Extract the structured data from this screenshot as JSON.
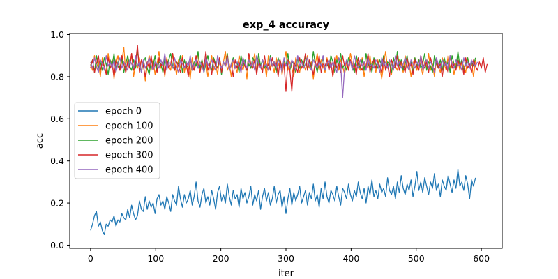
{
  "chart_data": {
    "type": "line",
    "title": "exp_4 accuracy",
    "xlabel": "iter",
    "ylabel": "acc",
    "xlim": [
      -32,
      632
    ],
    "ylim": [
      -0.015,
      1.005
    ],
    "xticks": [
      0,
      100,
      200,
      300,
      400,
      500,
      600
    ],
    "yticks": [
      0.0,
      0.2,
      0.4,
      0.6,
      0.8,
      1.0
    ],
    "xtick_labels": [
      "0",
      "100",
      "200",
      "300",
      "400",
      "500",
      "600"
    ],
    "ytick_labels": [
      "0.0",
      "0.2",
      "0.4",
      "0.6",
      "0.8",
      "1.0"
    ],
    "grid": false,
    "legend_position": "center-left",
    "x": {
      "start": 0,
      "end": 600,
      "step": 3
    },
    "series": [
      {
        "name": "epoch 0",
        "color": "#1f77b4",
        "values": [
          0.07,
          0.1,
          0.14,
          0.16,
          0.09,
          0.11,
          0.07,
          0.05,
          0.1,
          0.09,
          0.12,
          0.11,
          0.14,
          0.09,
          0.12,
          0.11,
          0.15,
          0.13,
          0.12,
          0.17,
          0.13,
          0.19,
          0.15,
          0.12,
          0.14,
          0.21,
          0.17,
          0.16,
          0.23,
          0.17,
          0.21,
          0.18,
          0.2,
          0.15,
          0.22,
          0.24,
          0.19,
          0.21,
          0.17,
          0.23,
          0.2,
          0.16,
          0.24,
          0.21,
          0.19,
          0.28,
          0.22,
          0.18,
          0.24,
          0.2,
          0.22,
          0.26,
          0.19,
          0.23,
          0.3,
          0.21,
          0.18,
          0.24,
          0.27,
          0.2,
          0.23,
          0.19,
          0.26,
          0.22,
          0.17,
          0.25,
          0.28,
          0.21,
          0.24,
          0.2,
          0.29,
          0.23,
          0.19,
          0.26,
          0.22,
          0.24,
          0.18,
          0.27,
          0.22,
          0.25,
          0.2,
          0.23,
          0.28,
          0.19,
          0.24,
          0.21,
          0.26,
          0.17,
          0.23,
          0.27,
          0.21,
          0.25,
          0.19,
          0.22,
          0.28,
          0.2,
          0.24,
          0.26,
          0.18,
          0.23,
          0.15,
          0.22,
          0.27,
          0.19,
          0.25,
          0.21,
          0.24,
          0.28,
          0.2,
          0.23,
          0.26,
          0.19,
          0.25,
          0.22,
          0.29,
          0.21,
          0.24,
          0.18,
          0.27,
          0.22,
          0.3,
          0.23,
          0.2,
          0.26,
          0.24,
          0.21,
          0.28,
          0.23,
          0.19,
          0.27,
          0.25,
          0.22,
          0.29,
          0.24,
          0.21,
          0.26,
          0.23,
          0.3,
          0.25,
          0.22,
          0.27,
          0.2,
          0.28,
          0.24,
          0.31,
          0.23,
          0.26,
          0.22,
          0.29,
          0.25,
          0.27,
          0.23,
          0.32,
          0.26,
          0.24,
          0.28,
          0.22,
          0.3,
          0.25,
          0.33,
          0.27,
          0.24,
          0.29,
          0.26,
          0.31,
          0.23,
          0.28,
          0.35,
          0.26,
          0.3,
          0.25,
          0.32,
          0.28,
          0.24,
          0.3,
          0.27,
          0.34,
          0.26,
          0.29,
          0.23,
          0.31,
          0.28,
          0.26,
          0.33,
          0.29,
          0.25,
          0.31,
          0.27,
          0.36,
          0.28,
          0.3,
          0.26,
          0.33,
          0.29,
          0.22,
          0.31,
          0.28,
          0.32
        ]
      },
      {
        "name": "epoch 100",
        "color": "#ff7f0e",
        "values": [
          0.86,
          0.83,
          0.9,
          0.84,
          0.87,
          0.8,
          0.89,
          0.85,
          0.82,
          0.91,
          0.84,
          0.88,
          0.79,
          0.86,
          0.9,
          0.83,
          0.87,
          0.94,
          0.82,
          0.88,
          0.85,
          0.91,
          0.8,
          0.86,
          0.84,
          0.89,
          0.82,
          0.87,
          0.78,
          0.85,
          0.9,
          0.83,
          0.88,
          0.81,
          0.86,
          0.92,
          0.84,
          0.87,
          0.8,
          0.89,
          0.85,
          0.83,
          0.91,
          0.86,
          0.81,
          0.88,
          0.84,
          0.9,
          0.82,
          0.87,
          0.85,
          0.79,
          0.89,
          0.83,
          0.86,
          0.91,
          0.82,
          0.88,
          0.84,
          0.87,
          0.8,
          0.85,
          0.9,
          0.83,
          0.86,
          0.81,
          0.89,
          0.84,
          0.87,
          0.92,
          0.83,
          0.86,
          0.8,
          0.88,
          0.85,
          0.82,
          0.9,
          0.86,
          0.83,
          0.87,
          0.79,
          0.89,
          0.84,
          0.86,
          0.91,
          0.82,
          0.88,
          0.85,
          0.83,
          0.87,
          0.8,
          0.9,
          0.84,
          0.86,
          0.82,
          0.89,
          0.85,
          0.88,
          0.81,
          0.86,
          0.92,
          0.83,
          0.87,
          0.84,
          0.8,
          0.89,
          0.85,
          0.82,
          0.88,
          0.86,
          0.83,
          0.9,
          0.84,
          0.87,
          0.79,
          0.86,
          0.91,
          0.83,
          0.88,
          0.85,
          0.82,
          0.89,
          0.84,
          0.87,
          0.8,
          0.86,
          0.9,
          0.83,
          0.88,
          0.85,
          0.81,
          0.87,
          0.84,
          0.91,
          0.86,
          0.82,
          0.88,
          0.85,
          0.83,
          0.89,
          0.8,
          0.86,
          0.84,
          0.9,
          0.83,
          0.87,
          0.82,
          0.88,
          0.85,
          0.79,
          0.86,
          0.92,
          0.84,
          0.87,
          0.81,
          0.89,
          0.85,
          0.83,
          0.88,
          0.86,
          0.82,
          0.9,
          0.84,
          0.87,
          0.8,
          0.86,
          0.89,
          0.83,
          0.88,
          0.85,
          0.81,
          0.87,
          0.84,
          0.91,
          0.83,
          0.86,
          0.8,
          0.88,
          0.85,
          0.82,
          0.89,
          0.86,
          0.83,
          0.9,
          0.84,
          0.87,
          0.81,
          0.86,
          0.88,
          0.83,
          0.87,
          0.85,
          0.82,
          0.89,
          0.84,
          0.86,
          0.8,
          0.88
        ]
      },
      {
        "name": "epoch 200",
        "color": "#2ca02c",
        "values": [
          0.85,
          0.88,
          0.82,
          0.9,
          0.84,
          0.87,
          0.83,
          0.89,
          0.86,
          0.81,
          0.88,
          0.85,
          0.91,
          0.83,
          0.87,
          0.84,
          0.89,
          0.82,
          0.86,
          0.9,
          0.85,
          0.83,
          0.88,
          0.84,
          0.92,
          0.86,
          0.82,
          0.87,
          0.89,
          0.84,
          0.81,
          0.88,
          0.85,
          0.9,
          0.83,
          0.87,
          0.86,
          0.82,
          0.89,
          0.84,
          0.88,
          0.91,
          0.85,
          0.83,
          0.87,
          0.86,
          0.9,
          0.82,
          0.88,
          0.84,
          0.86,
          0.89,
          0.83,
          0.87,
          0.85,
          0.92,
          0.84,
          0.88,
          0.82,
          0.86,
          0.9,
          0.85,
          0.83,
          0.89,
          0.86,
          0.84,
          0.88,
          0.81,
          0.87,
          0.85,
          0.91,
          0.83,
          0.86,
          0.89,
          0.84,
          0.87,
          0.82,
          0.9,
          0.85,
          0.88,
          0.83,
          0.86,
          0.84,
          0.89,
          0.87,
          0.82,
          0.91,
          0.85,
          0.88,
          0.84,
          0.86,
          0.83,
          0.9,
          0.85,
          0.87,
          0.82,
          0.89,
          0.86,
          0.84,
          0.88,
          0.85,
          0.91,
          0.83,
          0.87,
          0.86,
          0.82,
          0.89,
          0.84,
          0.88,
          0.85,
          0.9,
          0.83,
          0.87,
          0.84,
          0.92,
          0.86,
          0.82,
          0.88,
          0.85,
          0.89,
          0.83,
          0.86,
          0.84,
          0.9,
          0.87,
          0.82,
          0.88,
          0.85,
          0.91,
          0.84,
          0.86,
          0.83,
          0.89,
          0.87,
          0.85,
          0.82,
          0.9,
          0.86,
          0.84,
          0.88,
          0.83,
          0.91,
          0.85,
          0.87,
          0.82,
          0.89,
          0.86,
          0.84,
          0.88,
          0.85,
          0.9,
          0.83,
          0.87,
          0.86,
          0.82,
          0.89,
          0.84,
          0.92,
          0.85,
          0.88,
          0.83,
          0.86,
          0.9,
          0.84,
          0.87,
          0.82,
          0.89,
          0.85,
          0.88,
          0.84,
          0.86,
          0.91,
          0.83,
          0.87,
          0.85,
          0.82,
          0.9,
          0.86,
          0.84,
          0.88,
          0.83,
          0.89,
          0.85,
          0.87,
          0.82,
          0.9,
          0.86,
          0.84,
          0.92,
          0.85,
          0.88,
          0.83,
          0.86,
          0.89,
          0.84,
          0.87,
          0.85,
          0.89
        ]
      },
      {
        "name": "epoch 300",
        "color": "#d62728",
        "values": [
          0.84,
          0.88,
          0.82,
          0.86,
          0.9,
          0.83,
          0.87,
          0.85,
          0.81,
          0.89,
          0.84,
          0.86,
          0.8,
          0.88,
          0.85,
          0.83,
          0.9,
          0.86,
          0.82,
          0.87,
          0.84,
          0.91,
          0.83,
          0.86,
          0.95,
          0.82,
          0.88,
          0.85,
          0.8,
          0.87,
          0.84,
          0.9,
          0.83,
          0.86,
          0.82,
          0.89,
          0.85,
          0.87,
          0.81,
          0.88,
          0.84,
          0.86,
          0.91,
          0.83,
          0.87,
          0.85,
          0.82,
          0.89,
          0.84,
          0.86,
          0.8,
          0.88,
          0.85,
          0.83,
          0.9,
          0.86,
          0.82,
          0.87,
          0.84,
          0.92,
          0.83,
          0.86,
          0.81,
          0.88,
          0.85,
          0.84,
          0.89,
          0.82,
          0.87,
          0.85,
          0.9,
          0.83,
          0.86,
          0.8,
          0.88,
          0.84,
          0.87,
          0.82,
          0.89,
          0.85,
          0.83,
          0.91,
          0.86,
          0.84,
          0.88,
          0.81,
          0.87,
          0.85,
          0.82,
          0.9,
          0.84,
          0.86,
          0.83,
          0.89,
          0.85,
          0.87,
          0.8,
          0.88,
          0.84,
          0.86,
          0.73,
          0.88,
          0.83,
          0.73,
          0.87,
          0.85,
          0.82,
          0.89,
          0.84,
          0.86,
          0.91,
          0.83,
          0.88,
          0.85,
          0.81,
          0.87,
          0.84,
          0.9,
          0.82,
          0.86,
          0.85,
          0.88,
          0.83,
          0.87,
          0.8,
          0.89,
          0.84,
          0.86,
          0.82,
          0.9,
          0.85,
          0.87,
          0.83,
          0.88,
          0.84,
          0.86,
          0.81,
          0.89,
          0.85,
          0.83,
          0.87,
          0.84,
          0.91,
          0.82,
          0.86,
          0.88,
          0.84,
          0.87,
          0.85,
          0.82,
          0.89,
          0.83,
          0.86,
          0.8,
          0.88,
          0.85,
          0.84,
          0.9,
          0.83,
          0.87,
          0.85,
          0.82,
          0.89,
          0.84,
          0.86,
          0.81,
          0.88,
          0.85,
          0.83,
          0.9,
          0.86,
          0.84,
          0.87,
          0.82,
          0.89,
          0.85,
          0.83,
          0.88,
          0.84,
          0.86,
          0.8,
          0.87,
          0.85,
          0.82,
          0.9,
          0.84,
          0.86,
          0.83,
          0.88,
          0.85,
          0.87,
          0.81,
          0.89,
          0.84,
          0.86,
          0.82,
          0.88,
          0.85,
          0.83,
          0.87,
          0.84,
          0.89,
          0.82,
          0.86
        ]
      },
      {
        "name": "epoch 400",
        "color": "#9467bd",
        "values": [
          0.87,
          0.84,
          0.89,
          0.85,
          0.82,
          0.88,
          0.86,
          0.83,
          0.9,
          0.85,
          0.87,
          0.84,
          0.88,
          0.82,
          0.86,
          0.89,
          0.84,
          0.87,
          0.85,
          0.83,
          0.88,
          0.86,
          0.84,
          0.9,
          0.85,
          0.87,
          0.82,
          0.88,
          0.84,
          0.86,
          0.89,
          0.85,
          0.83,
          0.87,
          0.86,
          0.84,
          0.88,
          0.85,
          0.91,
          0.83,
          0.87,
          0.86,
          0.84,
          0.89,
          0.85,
          0.82,
          0.88,
          0.86,
          0.84,
          0.87,
          0.85,
          0.9,
          0.83,
          0.86,
          0.88,
          0.84,
          0.87,
          0.85,
          0.82,
          0.89,
          0.86,
          0.84,
          0.88,
          0.85,
          0.83,
          0.9,
          0.86,
          0.84,
          0.87,
          0.85,
          0.89,
          0.83,
          0.86,
          0.88,
          0.84,
          0.87,
          0.85,
          0.82,
          0.89,
          0.86,
          0.84,
          0.88,
          0.85,
          0.87,
          0.83,
          0.9,
          0.86,
          0.84,
          0.88,
          0.85,
          0.86,
          0.83,
          0.89,
          0.85,
          0.87,
          0.84,
          0.88,
          0.86,
          0.82,
          0.89,
          0.85,
          0.87,
          0.84,
          0.88,
          0.86,
          0.83,
          0.9,
          0.85,
          0.87,
          0.84,
          0.86,
          0.89,
          0.85,
          0.83,
          0.88,
          0.86,
          0.84,
          0.87,
          0.85,
          0.9,
          0.83,
          0.86,
          0.88,
          0.84,
          0.87,
          0.85,
          0.82,
          0.89,
          0.86,
          0.7,
          0.84,
          0.88,
          0.85,
          0.87,
          0.83,
          0.9,
          0.86,
          0.84,
          0.88,
          0.85,
          0.87,
          0.83,
          0.89,
          0.85,
          0.86,
          0.84,
          0.88,
          0.86,
          0.82,
          0.89,
          0.85,
          0.87,
          0.84,
          0.88,
          0.86,
          0.83,
          0.9,
          0.85,
          0.87,
          0.84,
          0.86,
          0.89,
          0.85,
          0.83,
          0.88,
          0.86,
          0.84,
          0.87,
          0.85,
          0.9,
          0.83,
          0.86,
          0.88,
          0.84,
          0.87,
          0.85,
          0.82,
          0.89,
          0.86,
          0.84,
          0.88,
          0.85,
          0.87,
          0.83,
          0.9,
          0.86,
          0.84,
          0.88,
          0.85,
          0.86,
          0.83,
          0.89,
          0.85,
          0.87,
          0.84,
          0.88,
          0.86,
          0.85,
          0.87
        ]
      }
    ]
  }
}
